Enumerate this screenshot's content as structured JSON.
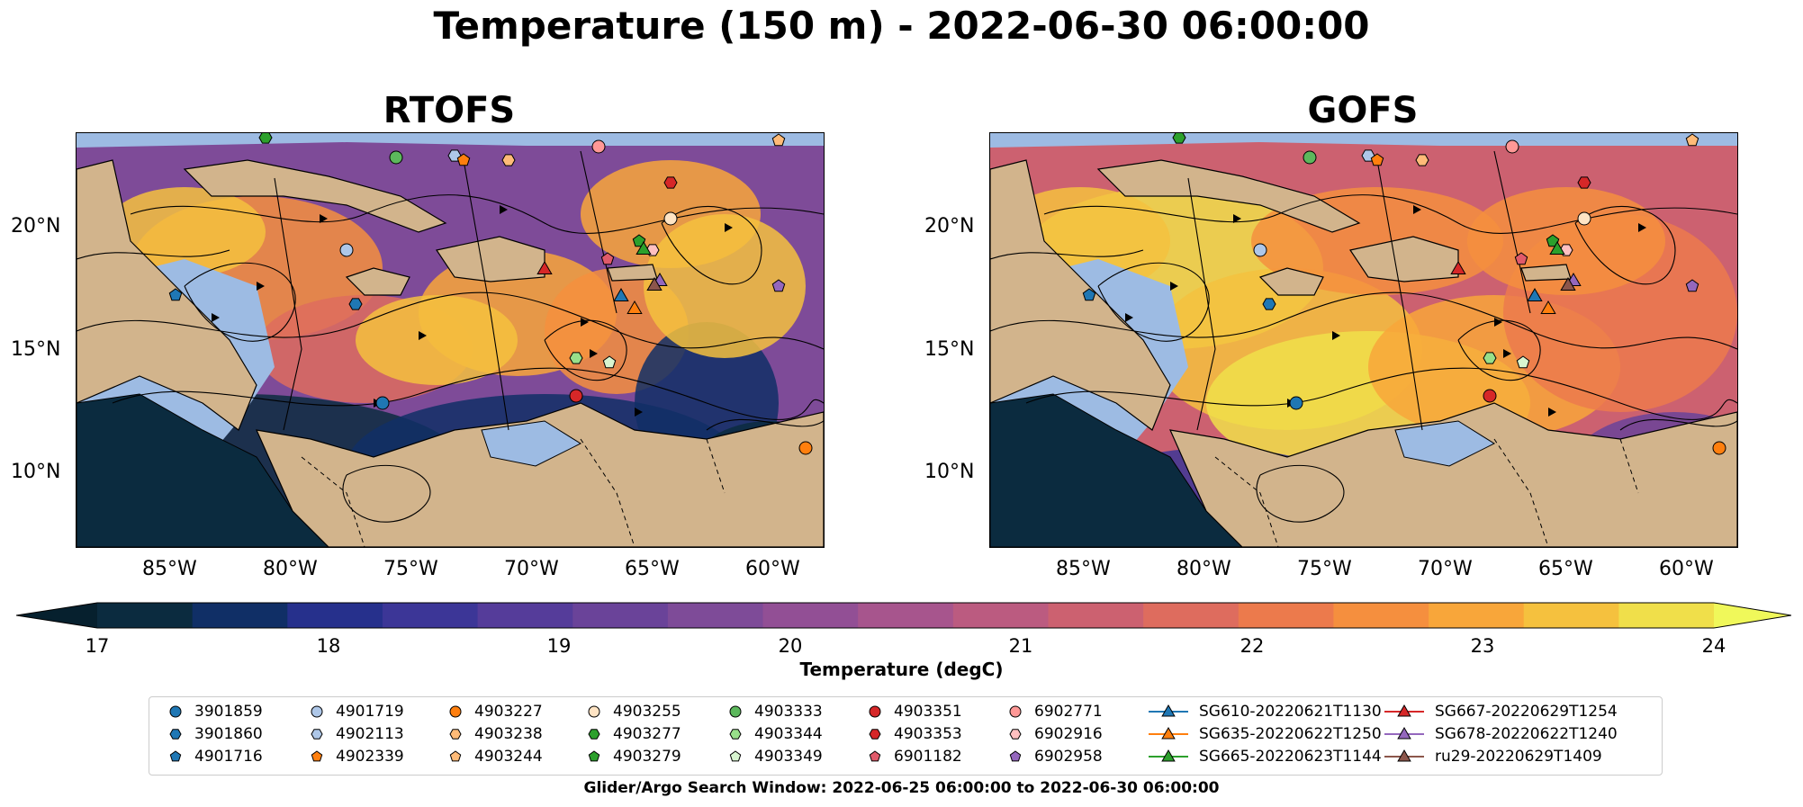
{
  "title": "Temperature (150 m) - 2022-06-30 06:00:00",
  "panels": [
    {
      "name": "RTOFS"
    },
    {
      "name": "GOFS"
    }
  ],
  "axes": {
    "lon_ticks": [
      "85°W",
      "80°W",
      "75°W",
      "70°W",
      "65°W",
      "60°W"
    ],
    "lat_ticks": [
      "20°N",
      "15°N",
      "10°N"
    ]
  },
  "colorbar": {
    "label": "Temperature (degC)",
    "ticks": [
      "17",
      "18",
      "19",
      "20",
      "21",
      "22",
      "23",
      "24"
    ],
    "range": [
      17,
      24
    ],
    "extend": "both",
    "colors": [
      "#0b2b3f",
      "#102f66",
      "#26308c",
      "#3c3697",
      "#553c9a",
      "#6a4399",
      "#7e4b98",
      "#924f95",
      "#a7558d",
      "#bb5b80",
      "#cc6170",
      "#de6c5e",
      "#ec7a4c",
      "#f58f3e",
      "#f8a63a",
      "#f5c13e",
      "#f0df4a"
    ],
    "low_color": "#06202e",
    "high_color": "#f0f85a"
  },
  "map_colors": {
    "land": "#d2b48c",
    "shallow": "#9dbbe3",
    "coast": "#000000"
  },
  "legend": {
    "argo": [
      {
        "id": "3901859",
        "color": "#1f77b4",
        "marker": "circle"
      },
      {
        "id": "3901860",
        "color": "#1f77b4",
        "marker": "hexagon"
      },
      {
        "id": "4901716",
        "color": "#1f77b4",
        "marker": "pentagon"
      },
      {
        "id": "4901719",
        "color": "#aec7e8",
        "marker": "circle"
      },
      {
        "id": "4902113",
        "color": "#aec7e8",
        "marker": "hexagon"
      },
      {
        "id": "4902339",
        "color": "#ff7f0e",
        "marker": "pentagon"
      },
      {
        "id": "4903227",
        "color": "#ff7f0e",
        "marker": "circle"
      },
      {
        "id": "4903238",
        "color": "#ffbb78",
        "marker": "hexagon"
      },
      {
        "id": "4903244",
        "color": "#ffbb78",
        "marker": "pentagon"
      },
      {
        "id": "4903255",
        "color": "#ffe4c4",
        "marker": "circle"
      },
      {
        "id": "4903277",
        "color": "#2ca02c",
        "marker": "hexagon"
      },
      {
        "id": "4903279",
        "color": "#2ca02c",
        "marker": "pentagon"
      },
      {
        "id": "4903333",
        "color": "#5cb85c",
        "marker": "circle"
      },
      {
        "id": "4903344",
        "color": "#98df8a",
        "marker": "hexagon"
      },
      {
        "id": "4903349",
        "color": "#d8f5d0",
        "marker": "pentagon"
      },
      {
        "id": "4903351",
        "color": "#d62728",
        "marker": "circle"
      },
      {
        "id": "4903353",
        "color": "#d62728",
        "marker": "hexagon"
      },
      {
        "id": "6901182",
        "color": "#e05a6a",
        "marker": "pentagon"
      },
      {
        "id": "6902771",
        "color": "#ff9896",
        "marker": "circle"
      },
      {
        "id": "6902916",
        "color": "#ffc0c0",
        "marker": "hexagon"
      },
      {
        "id": "6902958",
        "color": "#9467bd",
        "marker": "pentagon"
      }
    ],
    "gliders": [
      {
        "id": "SG610-20220621T1130",
        "color": "#1f77b4"
      },
      {
        "id": "SG635-20220622T1250",
        "color": "#ff7f0e"
      },
      {
        "id": "SG665-20220623T1144",
        "color": "#2ca02c"
      },
      {
        "id": "SG667-20220629T1254",
        "color": "#d62728"
      },
      {
        "id": "SG678-20220622T1240",
        "color": "#9467bd"
      },
      {
        "id": "ru29-20220629T1409",
        "color": "#8c564b"
      }
    ]
  },
  "footer": "Glider/Argo Search Window: 2022-06-25 06:00:00 to 2022-06-30 06:00:00"
}
